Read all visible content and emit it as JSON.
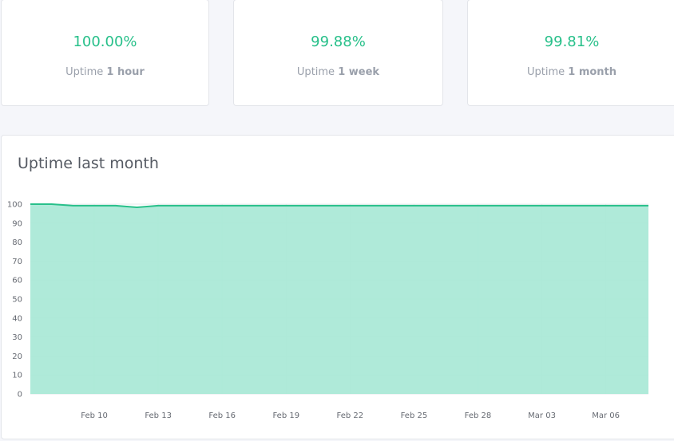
{
  "stats": [
    {
      "value": "100.00%",
      "label": "Uptime",
      "period": "1 hour"
    },
    {
      "value": "99.88%",
      "label": "Uptime",
      "period": "1 week"
    },
    {
      "value": "99.81%",
      "label": "Uptime",
      "period": "1 month"
    }
  ],
  "chart": {
    "title": "Uptime last month"
  },
  "colors": {
    "accent": "#28c08a",
    "fill": "#a8e8d6",
    "stat_label": "#9aa0ab"
  },
  "chart_data": {
    "type": "area",
    "title": "Uptime last month",
    "xlabel": "",
    "ylabel": "",
    "ylim": [
      0,
      100
    ],
    "yticks": [
      0,
      10,
      20,
      30,
      40,
      50,
      60,
      70,
      80,
      90,
      100
    ],
    "xlim": [
      "2025-02-07",
      "2025-03-08"
    ],
    "xticks": [
      {
        "label": "Feb 10",
        "date": "2025-02-10"
      },
      {
        "label": "Feb 13",
        "date": "2025-02-13"
      },
      {
        "label": "Feb 16",
        "date": "2025-02-16"
      },
      {
        "label": "Feb 19",
        "date": "2025-02-19"
      },
      {
        "label": "Feb 22",
        "date": "2025-02-22"
      },
      {
        "label": "Feb 25",
        "date": "2025-02-25"
      },
      {
        "label": "Feb 28",
        "date": "2025-02-28"
      },
      {
        "label": "Mar 03",
        "date": "2025-03-03"
      },
      {
        "label": "Mar 06",
        "date": "2025-03-06"
      }
    ],
    "grid": true,
    "series": [
      {
        "points": [
          {
            "x": "2025-02-07",
            "y": 100
          },
          {
            "x": "2025-02-08",
            "y": 100
          },
          {
            "x": "2025-02-09",
            "y": 99.2
          },
          {
            "x": "2025-02-10",
            "y": 99.2
          },
          {
            "x": "2025-02-11",
            "y": 99.2
          },
          {
            "x": "2025-02-12",
            "y": 98.3
          },
          {
            "x": "2025-02-13",
            "y": 99.2
          },
          {
            "x": "2025-02-14",
            "y": 99.2
          },
          {
            "x": "2025-02-15",
            "y": 99.2
          },
          {
            "x": "2025-02-16",
            "y": 99.2
          },
          {
            "x": "2025-02-17",
            "y": 99.2
          },
          {
            "x": "2025-02-18",
            "y": 99.2
          },
          {
            "x": "2025-02-19",
            "y": 99.2
          },
          {
            "x": "2025-02-20",
            "y": 99.2
          },
          {
            "x": "2025-02-21",
            "y": 99.2
          },
          {
            "x": "2025-02-22",
            "y": 99.2
          },
          {
            "x": "2025-02-23",
            "y": 99.2
          },
          {
            "x": "2025-02-24",
            "y": 99.2
          },
          {
            "x": "2025-02-25",
            "y": 99.2
          },
          {
            "x": "2025-02-26",
            "y": 99.2
          },
          {
            "x": "2025-02-27",
            "y": 99.2
          },
          {
            "x": "2025-02-28",
            "y": 99.2
          },
          {
            "x": "2025-03-01",
            "y": 99.2
          },
          {
            "x": "2025-03-02",
            "y": 99.2
          },
          {
            "x": "2025-03-03",
            "y": 99.2
          },
          {
            "x": "2025-03-04",
            "y": 99.2
          },
          {
            "x": "2025-03-05",
            "y": 99.2
          },
          {
            "x": "2025-03-06",
            "y": 99.2
          },
          {
            "x": "2025-03-07",
            "y": 99.2
          },
          {
            "x": "2025-03-08",
            "y": 99.2
          }
        ]
      }
    ]
  }
}
